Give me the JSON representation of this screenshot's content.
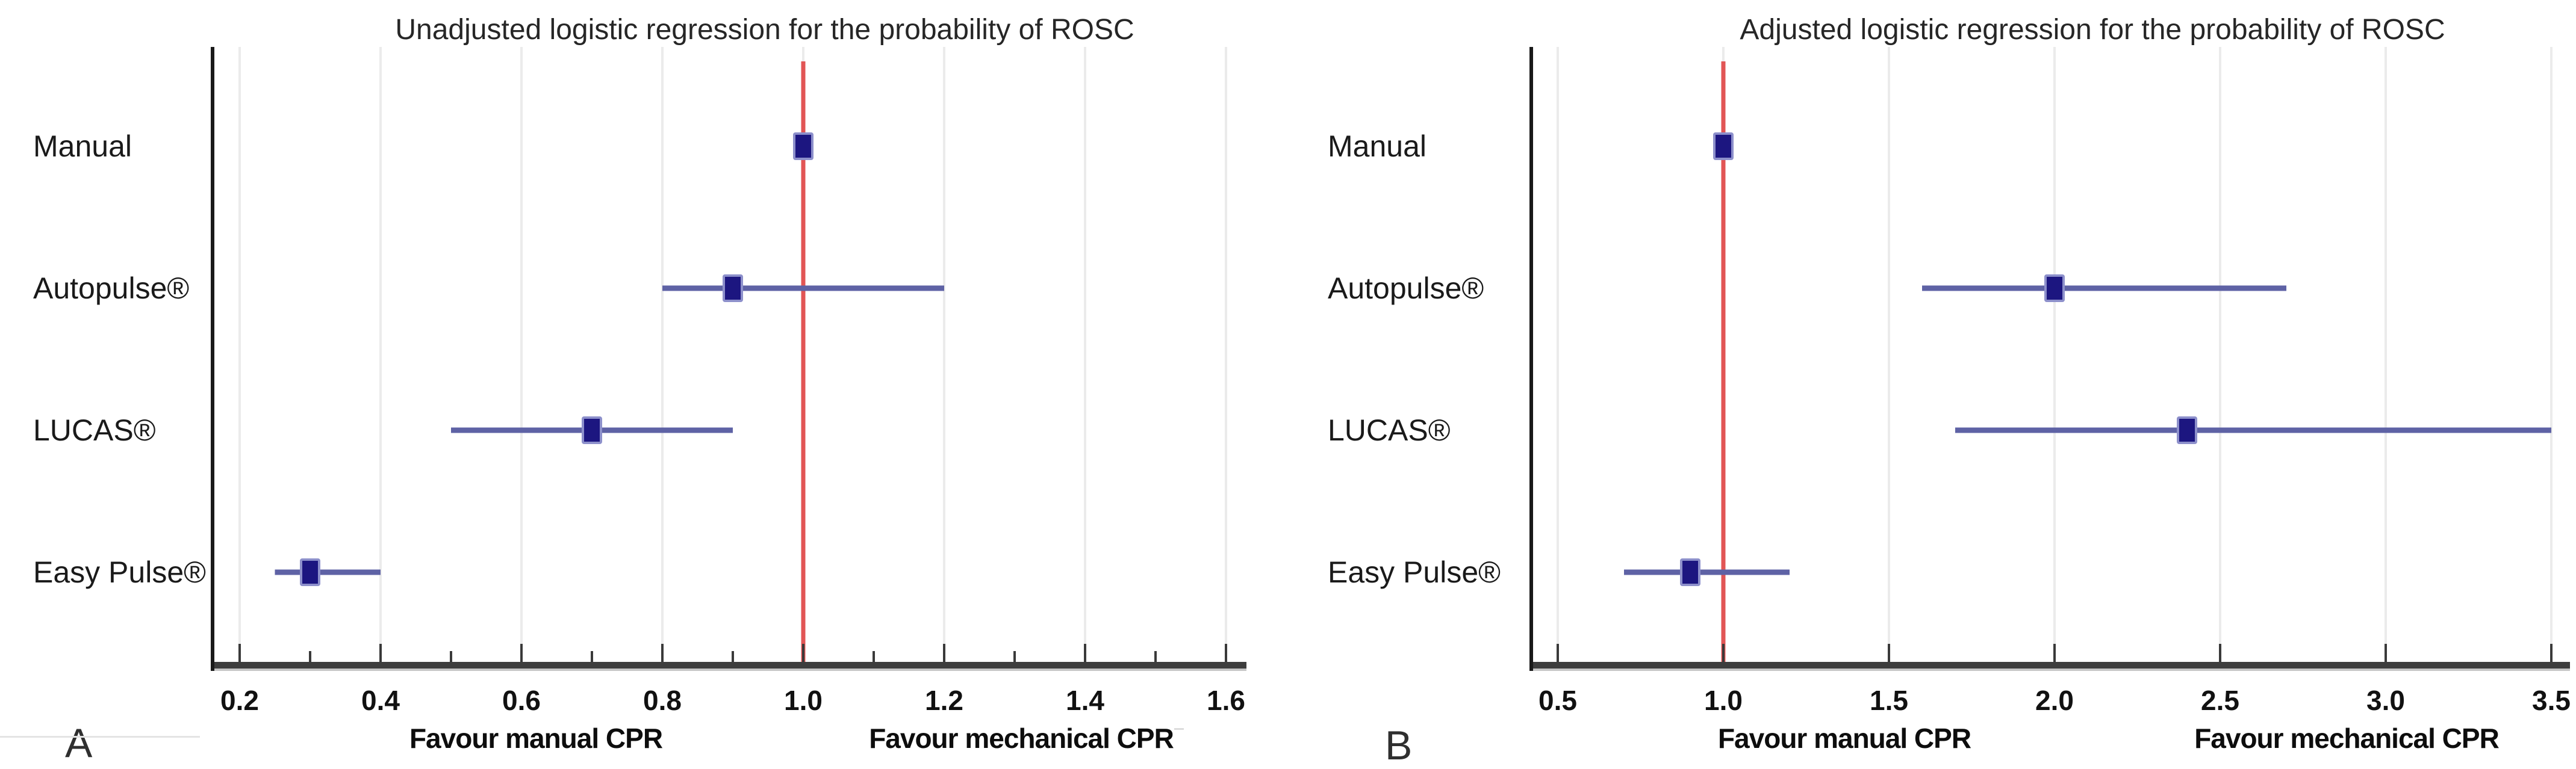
{
  "colors": {
    "marker": "#1c1680",
    "marker_halo": "#8d90cb",
    "ci_line": "#5e62a5",
    "reference_line": "#e25555",
    "gridline": "#ebebeb",
    "axis_bar": "#3d3d3d",
    "axis_bar_shadow": "#c6c6c6",
    "axis_spine": "#1a1a1a",
    "tick": "#3a3a3a",
    "text": "#1a1a1a",
    "tick_label": "#111111",
    "favour_label": "#0d0d0d"
  },
  "chart_data": [
    {
      "type": "scatter",
      "variant": "forest-plot",
      "panel_label": "A",
      "title": "Unadjusted logistic regression for the probability of ROSC",
      "categories": [
        "Manual",
        "Autopulse®",
        "LUCAS®",
        "Easy Pulse®"
      ],
      "points": [
        {
          "category": "Manual",
          "or": 1.0,
          "ci_low": null,
          "ci_high": null
        },
        {
          "category": "Autopulse®",
          "or": 0.9,
          "ci_low": 0.8,
          "ci_high": 1.2
        },
        {
          "category": "LUCAS®",
          "or": 0.7,
          "ci_low": 0.5,
          "ci_high": 0.9
        },
        {
          "category": "Easy Pulse®",
          "or": 0.3,
          "ci_low": 0.25,
          "ci_high": 0.4
        }
      ],
      "x_ticks": [
        0.2,
        0.4,
        0.6,
        0.8,
        1.0,
        1.2,
        1.4,
        1.6
      ],
      "x_tick_labels": [
        "0.2",
        "0.4",
        "0.6",
        "0.8",
        "1.0",
        "1.2",
        "1.4",
        "1.6"
      ],
      "minor_ticks": [
        0.3,
        0.5,
        0.7,
        0.9,
        1.1,
        1.3,
        1.5
      ],
      "xlim": [
        0.16,
        1.63
      ],
      "reference_line_x": 1.0,
      "xlabel_left": "Favour manual CPR",
      "xlabel_right": "Favour mechanical CPR",
      "grid": true,
      "legend": false
    },
    {
      "type": "scatter",
      "variant": "forest-plot",
      "panel_label": "B",
      "title": "Adjusted logistic regression for the probability of ROSC",
      "categories": [
        "Manual",
        "Autopulse®",
        "LUCAS®",
        "Easy Pulse®"
      ],
      "points": [
        {
          "category": "Manual",
          "or": 1.0,
          "ci_low": null,
          "ci_high": null
        },
        {
          "category": "Autopulse®",
          "or": 2.0,
          "ci_low": 1.6,
          "ci_high": 2.7
        },
        {
          "category": "LUCAS®",
          "or": 2.4,
          "ci_low": 1.7,
          "ci_high": 3.5
        },
        {
          "category": "Easy Pulse®",
          "or": 0.9,
          "ci_low": 0.7,
          "ci_high": 1.2
        }
      ],
      "x_ticks": [
        0.5,
        1.0,
        1.5,
        2.0,
        2.5,
        3.0,
        3.5
      ],
      "x_tick_labels": [
        "0.5",
        "1.0",
        "1.5",
        "2.0",
        "2.5",
        "3.0",
        "3.5"
      ],
      "minor_ticks": [],
      "xlim": [
        0.43,
        3.56
      ],
      "reference_line_x": 1.0,
      "xlabel_left": "Favour manual CPR",
      "xlabel_right": "Favour mechanical CPR",
      "grid": true,
      "legend": false
    }
  ]
}
